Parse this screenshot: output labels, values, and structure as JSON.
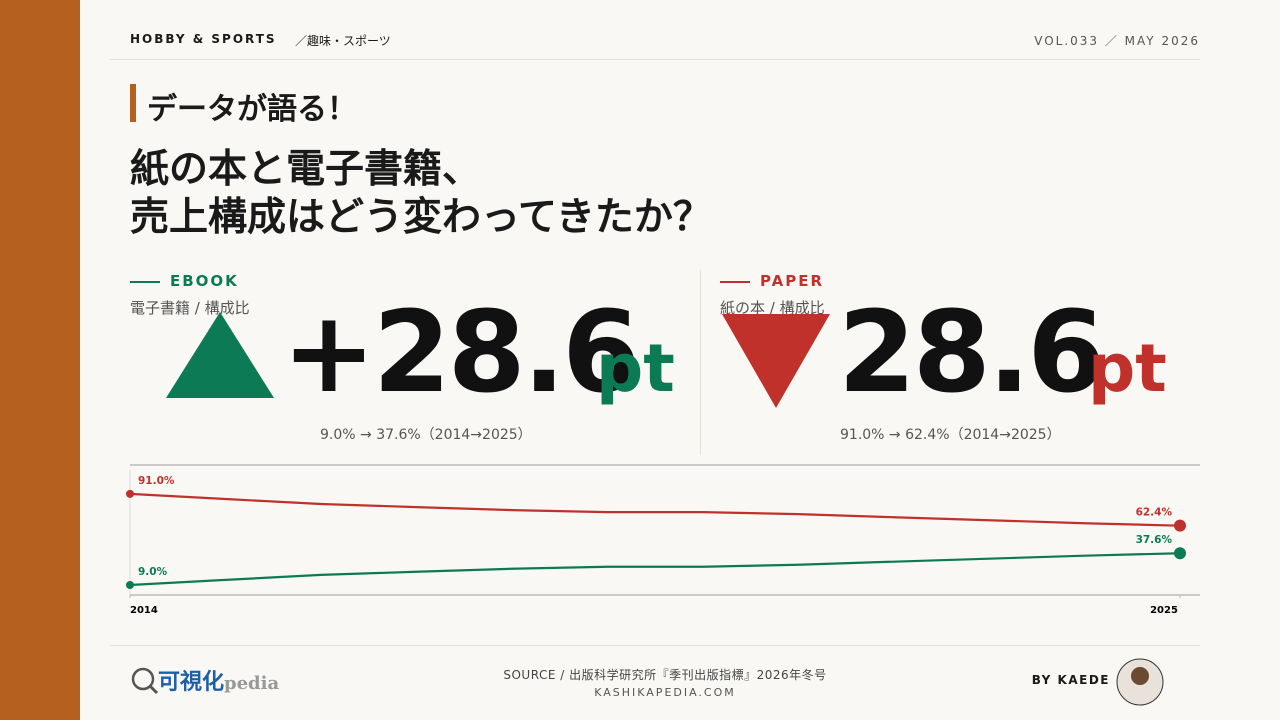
{
  "header": {
    "section": "HOBBY & SPORTS",
    "section_ja": "／趣味・スポーツ",
    "issue": "VOL.033 ／ MAY 2026"
  },
  "kicker": "データが語る！",
  "title_lines": [
    "紙の本と電子書籍、",
    "売上構成はどう変わってきたか？"
  ],
  "kpis": [
    {
      "label": "EBOOK",
      "sublabel": "電子書籍 / 構成比",
      "change": "+28.6",
      "unit": "pt",
      "detail": "9.0% → 37.6%（2014→2025）",
      "color": "#0b7a55"
    },
    {
      "label": "PAPER",
      "sublabel": "紙の本 / 構成比",
      "change": "28.6",
      "unit": "pt",
      "detail": "91.0% → 62.4%（2014→2025）",
      "color": "#c0312b"
    }
  ],
  "chart_data": {
    "type": "line",
    "x": [
      2014,
      2015,
      2016,
      2017,
      2018,
      2019,
      2020,
      2021,
      2022,
      2023,
      2024,
      2025
    ],
    "xlim": [
      2014,
      2025
    ],
    "xticks": [
      2014,
      2025
    ],
    "ylim": [
      0,
      117
    ],
    "series": [
      {
        "name": "PAPER",
        "color": "#c0312b",
        "values": [
          91.0,
          86.4,
          81.9,
          79.1,
          76.4,
          74.6,
          74.6,
          72.8,
          70.0,
          67.3,
          64.6,
          62.4
        ],
        "value_labels": [
          "91.0%",
          null,
          null,
          null,
          null,
          null,
          null,
          null,
          null,
          null,
          null,
          "62.4%"
        ]
      },
      {
        "name": "EBOOK",
        "color": "#0b7a55",
        "values": [
          9.0,
          13.6,
          18.1,
          20.9,
          23.6,
          25.4,
          25.4,
          27.2,
          30.0,
          32.7,
          35.4,
          37.6
        ],
        "value_labels": [
          "9.0%",
          null,
          null,
          null,
          null,
          null,
          null,
          null,
          null,
          null,
          null,
          "37.6%"
        ]
      }
    ]
  },
  "footer": {
    "logo": "可視化",
    "logo_suffix": "pedia",
    "source": "SOURCE / 出版科学研究所『季刊出版指標』2026年冬号",
    "site": "KASHIKAPEDIA.COM",
    "author": "BY KAEDE"
  }
}
